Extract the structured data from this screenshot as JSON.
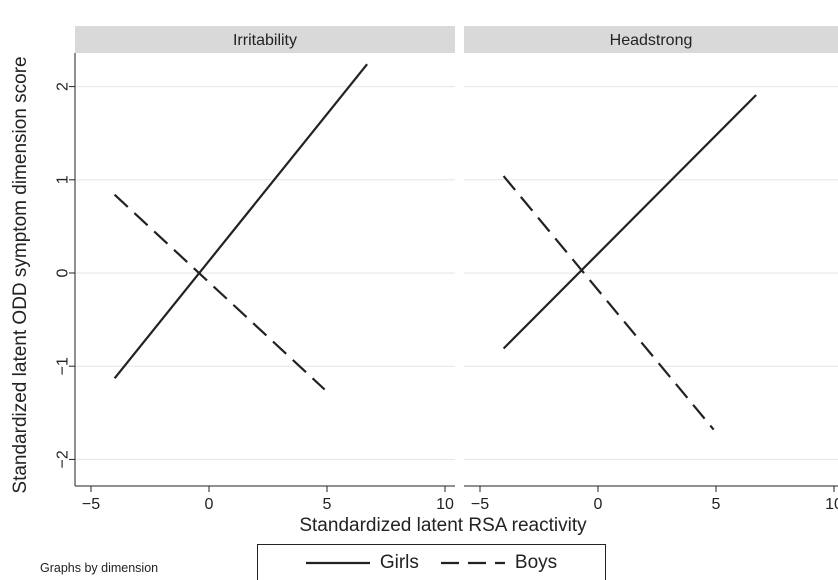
{
  "chart_data": {
    "type": "line",
    "ylabel": "Standardized latent ODD symptom dimension score",
    "xlabel": "Standardized latent RSA reactivity",
    "note": "Graphs by dimension",
    "xlim": [
      -6,
      10
    ],
    "ylim": [
      -2.2,
      2.4
    ],
    "x_ticks": [
      -5,
      0,
      5,
      10
    ],
    "x_tick_labels": [
      "−5",
      "0",
      "5",
      "10"
    ],
    "y_ticks": [
      -2,
      -1,
      0,
      1,
      2
    ],
    "y_tick_labels": [
      "−2",
      "−1",
      "0",
      "1",
      "2"
    ],
    "grid": "horizontal",
    "legend": {
      "position": "bottom",
      "entries": [
        {
          "label": "Girls",
          "style": "solid"
        },
        {
          "label": "Boys",
          "style": "dashed"
        }
      ]
    },
    "panels": [
      {
        "title": "Irritability",
        "series": [
          {
            "name": "Girls",
            "style": "solid",
            "x": [
              -4,
              6.7
            ],
            "y": [
              -1.13,
              2.24
            ]
          },
          {
            "name": "Boys",
            "style": "dashed",
            "x": [
              -4,
              4.9
            ],
            "y": [
              0.84,
              -1.25
            ]
          }
        ]
      },
      {
        "title": "Headstrong",
        "series": [
          {
            "name": "Girls",
            "style": "solid",
            "x": [
              -4,
              6.7
            ],
            "y": [
              -0.81,
              1.91
            ]
          },
          {
            "name": "Boys",
            "style": "dashed",
            "x": [
              -4,
              4.9
            ],
            "y": [
              1.04,
              -1.68
            ]
          }
        ]
      }
    ]
  },
  "colors": {
    "line": "#222222",
    "strip": "#d9d9d9",
    "grid": "#e6e6e6",
    "axis": "#222222"
  }
}
